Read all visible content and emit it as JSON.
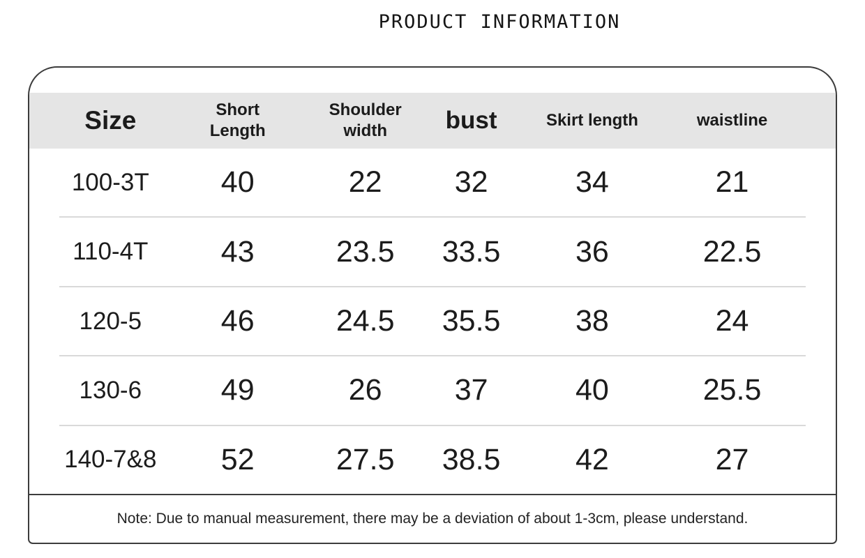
{
  "page": {
    "title": "PRODUCT INFORMATION"
  },
  "size_table": {
    "columns": [
      "Size",
      "Short\nLength",
      "Shoulder\nwidth",
      "bust",
      "Skirt length",
      "waistline"
    ],
    "rows": [
      [
        "100-3T",
        "40",
        "22",
        "32",
        "34",
        "21"
      ],
      [
        "110-4T",
        "43",
        "23.5",
        "33.5",
        "36",
        "22.5"
      ],
      [
        "120-5",
        "46",
        "24.5",
        "35.5",
        "38",
        "24"
      ],
      [
        "130-6",
        "49",
        "26",
        "37",
        "40",
        "25.5"
      ],
      [
        "140-7&8",
        "52",
        "27.5",
        "38.5",
        "42",
        "27"
      ]
    ],
    "note": "Note: Due to manual measurement, there may be a deviation of about 1-3cm, please understand."
  },
  "chart_data": {
    "type": "table",
    "title": "PRODUCT INFORMATION",
    "columns": [
      "Size",
      "Short Length",
      "Shoulder width",
      "bust",
      "Skirt length",
      "waistline"
    ],
    "rows": [
      {
        "size": "100-3T",
        "short_length": 40,
        "shoulder_width": 22,
        "bust": 32,
        "skirt_length": 34,
        "waistline": 21
      },
      {
        "size": "110-4T",
        "short_length": 43,
        "shoulder_width": 23.5,
        "bust": 33.5,
        "skirt_length": 36,
        "waistline": 22.5
      },
      {
        "size": "120-5",
        "short_length": 46,
        "shoulder_width": 24.5,
        "bust": 35.5,
        "skirt_length": 38,
        "waistline": 24
      },
      {
        "size": "130-6",
        "short_length": 49,
        "shoulder_width": 26,
        "bust": 37,
        "skirt_length": 40,
        "waistline": 25.5
      },
      {
        "size": "140-7&8",
        "short_length": 52,
        "shoulder_width": 27.5,
        "bust": 38.5,
        "skirt_length": 42,
        "waistline": 27
      }
    ],
    "note": "Note: Due to manual measurement, there may be a deviation of about 1-3cm, please understand.",
    "units": "cm"
  },
  "colors": {
    "header_bg": "#e5e5e5",
    "card_border": "#3c3c3c",
    "row_divider": "#d9d9d9",
    "text": "#1c1c1c"
  }
}
